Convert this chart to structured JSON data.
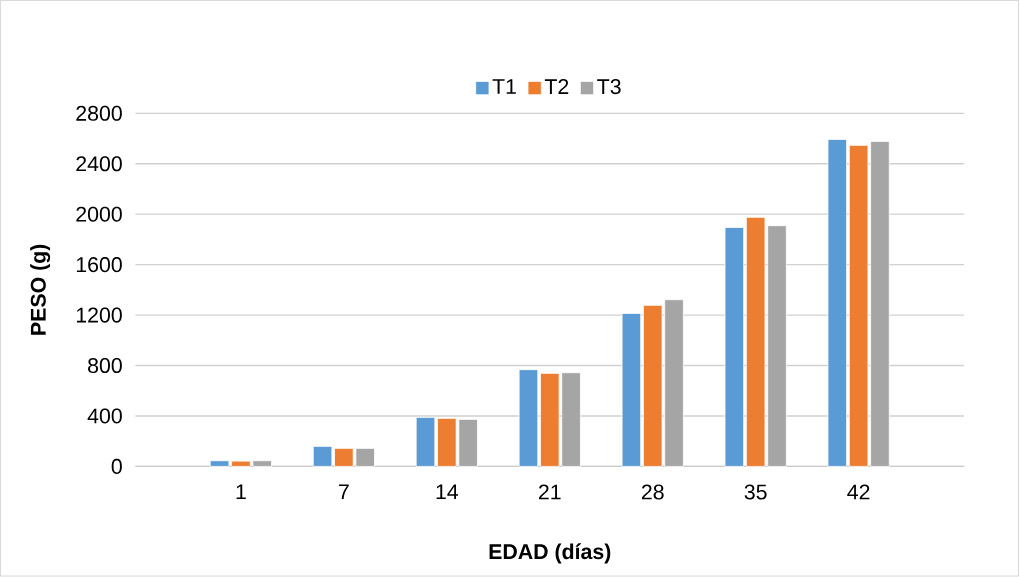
{
  "chart_data": {
    "type": "bar",
    "xlabel": "EDAD (días)",
    "ylabel": "PESO (g)",
    "categories": [
      "1",
      "7",
      "14",
      "21",
      "28",
      "35",
      "42"
    ],
    "series": [
      {
        "name": "T1",
        "color": "#5b9bd5",
        "values": [
          45,
          159,
          389,
          767,
          1213,
          1895,
          2593
        ]
      },
      {
        "name": "T2",
        "color": "#ed7d31",
        "values": [
          42,
          143,
          381,
          738,
          1277,
          1975,
          2546
        ]
      },
      {
        "name": "T3",
        "color": "#a5a5a5",
        "values": [
          45,
          143,
          373,
          743,
          1322,
          1909,
          2577
        ]
      }
    ],
    "ylim": [
      0,
      2800
    ],
    "yticks": [
      0,
      400,
      800,
      1200,
      1600,
      2000,
      2400,
      2800
    ],
    "grid": "y",
    "legend": "top"
  }
}
